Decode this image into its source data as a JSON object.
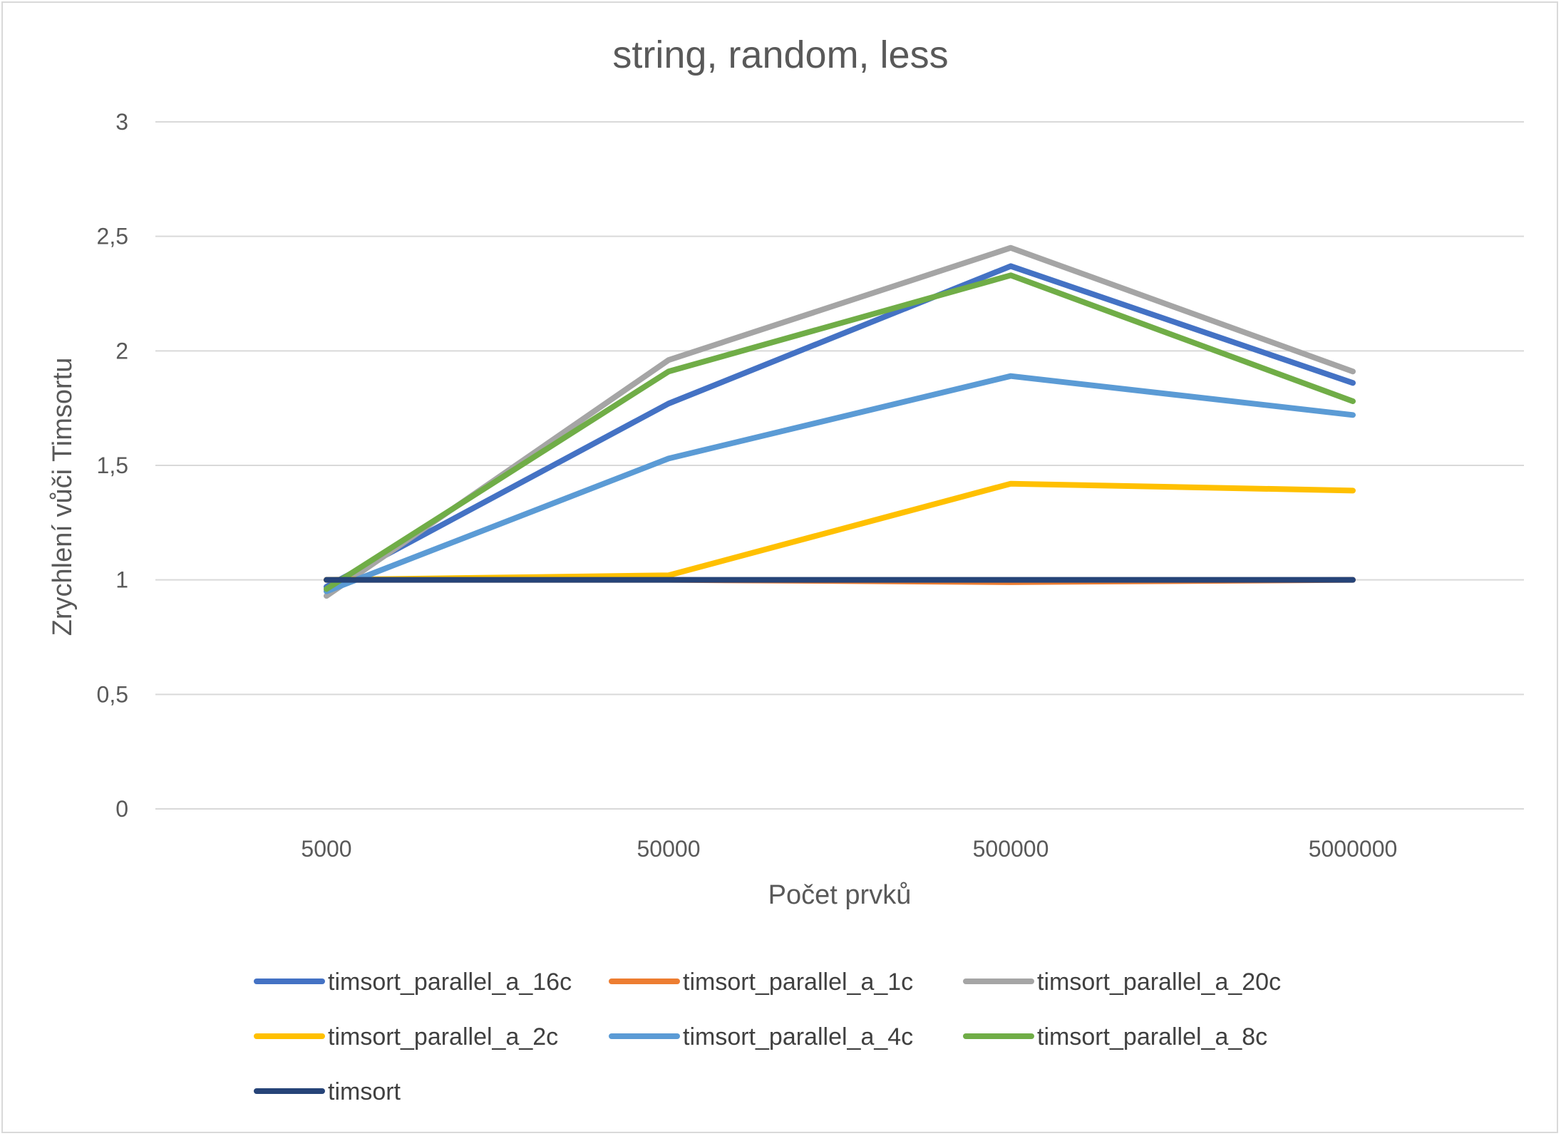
{
  "chart_data": {
    "type": "line",
    "title": "string, random, less",
    "xlabel": "Počet prvků",
    "ylabel": "Zrychlení vůči Timsortu",
    "categories": [
      "5000",
      "50000",
      "500000",
      "5000000"
    ],
    "ylim": [
      0,
      3
    ],
    "yticks": [
      0,
      0.5,
      1,
      1.5,
      2,
      2.5,
      3
    ],
    "ytick_labels": [
      "0",
      "0,5",
      "1",
      "1,5",
      "2",
      "2,5",
      "3"
    ],
    "grid": "horizontal",
    "legend_position": "bottom",
    "series": [
      {
        "name": "timsort_parallel_a_16c",
        "color": "#4472c4",
        "values": [
          0.97,
          1.77,
          2.37,
          1.86
        ]
      },
      {
        "name": "timsort_parallel_a_1c",
        "color": "#ed7d31",
        "values": [
          1.0,
          1.0,
          0.99,
          1.0
        ]
      },
      {
        "name": "timsort_parallel_a_20c",
        "color": "#a5a5a5",
        "values": [
          0.93,
          1.96,
          2.45,
          1.91
        ]
      },
      {
        "name": "timsort_parallel_a_2c",
        "color": "#ffc000",
        "values": [
          1.0,
          1.02,
          1.42,
          1.39
        ]
      },
      {
        "name": "timsort_parallel_a_4c",
        "color": "#5b9bd5",
        "values": [
          0.95,
          1.53,
          1.89,
          1.72
        ]
      },
      {
        "name": "timsort_parallel_a_8c",
        "color": "#70ad47",
        "values": [
          0.96,
          1.91,
          2.33,
          1.78
        ]
      },
      {
        "name": "timsort",
        "color": "#264478",
        "values": [
          1.0,
          1.0,
          1.0,
          1.0
        ]
      }
    ]
  }
}
